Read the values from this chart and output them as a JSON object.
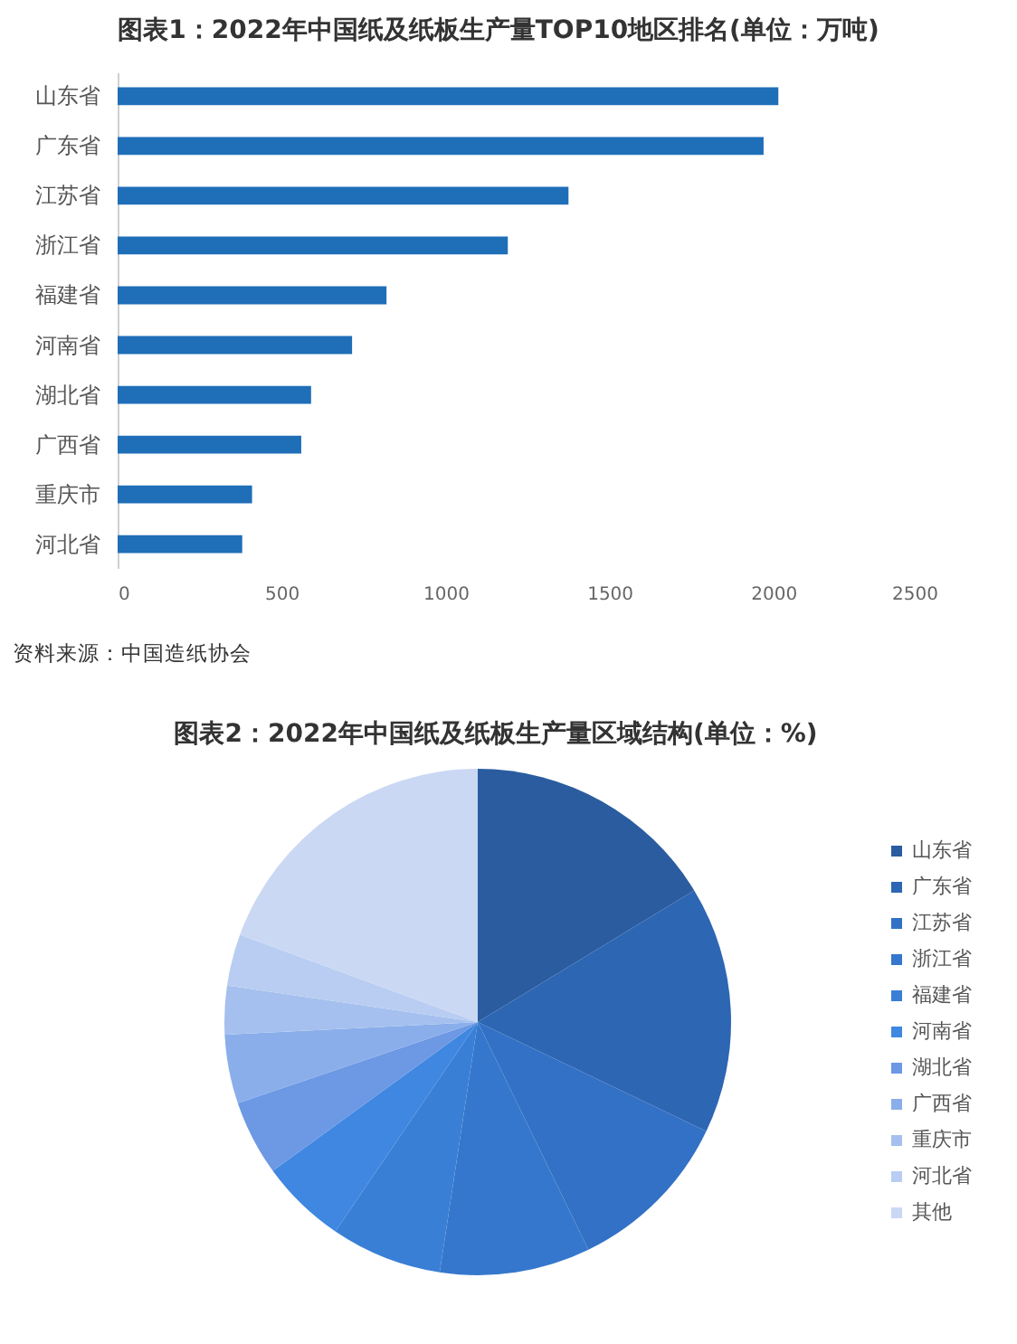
{
  "chart_data": [
    {
      "type": "bar",
      "orientation": "horizontal",
      "title": "图表1：2022年中国纸及纸板生产量TOP10地区排名(单位：万吨)",
      "categories": [
        "山东省",
        "广东省",
        "江苏省",
        "浙江省",
        "福建省",
        "河南省",
        "湖北省",
        "广西省",
        "重庆市",
        "河北省"
      ],
      "values": [
        2015,
        1970,
        1375,
        1190,
        820,
        715,
        590,
        560,
        410,
        380
      ],
      "color": "#1f6eb8",
      "xlim": [
        0,
        2500
      ],
      "xticks": [
        0,
        500,
        1000,
        1500,
        2000,
        2500
      ],
      "annotations": [
        "资料来源：中国造纸协会"
      ]
    },
    {
      "type": "pie",
      "title": "图表2：2022年中国纸及纸板生产量区域结构(单位：%)",
      "categories": [
        "山东省",
        "广东省",
        "江苏省",
        "浙江省",
        "福建省",
        "河南省",
        "湖北省",
        "广西省",
        "重庆市",
        "河北省",
        "其他"
      ],
      "values": [
        16.3,
        15.8,
        10.7,
        9.6,
        7.1,
        5.5,
        4.8,
        4.4,
        3.1,
        3.3,
        19.4
      ],
      "colors": [
        "#2a5c9f",
        "#2d66b3",
        "#3271c5",
        "#3577cc",
        "#397fd6",
        "#3f87e0",
        "#6c98e4",
        "#8aaeea",
        "#a5c0ee",
        "#b8cdf1",
        "#cad8f4"
      ],
      "legend": "right"
    }
  ]
}
